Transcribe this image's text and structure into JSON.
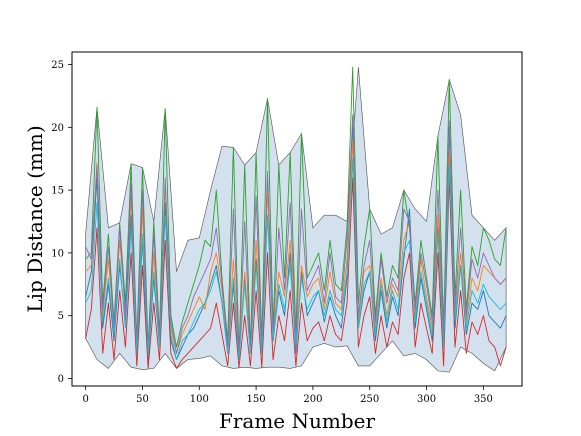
{
  "chart_data": {
    "type": "line",
    "title": "",
    "xlabel": "Frame Number",
    "ylabel": "Lip Distance (mm)",
    "xlim": [
      -12,
      384
    ],
    "ylim": [
      -0.6,
      26.0
    ],
    "x_ticks": [
      0,
      50,
      100,
      150,
      200,
      250,
      300,
      350
    ],
    "y_ticks": [
      0,
      5,
      10,
      15,
      20,
      25
    ],
    "grid": false,
    "legend": "none",
    "band": {
      "name": "",
      "color": "#9bbcd6",
      "x": [
        0,
        10,
        20,
        30,
        40,
        50,
        60,
        70,
        80,
        90,
        100,
        110,
        120,
        130,
        140,
        150,
        160,
        170,
        180,
        190,
        200,
        210,
        220,
        230,
        240,
        250,
        260,
        270,
        280,
        290,
        300,
        310,
        320,
        330,
        340,
        350,
        360,
        370
      ],
      "upper": [
        11.5,
        21.6,
        12.0,
        12.4,
        17.1,
        16.8,
        12.5,
        21.5,
        8.5,
        11.0,
        11.2,
        15.0,
        18.5,
        18.4,
        17.0,
        18.0,
        22.3,
        17.0,
        18.0,
        19.5,
        12.0,
        13.0,
        13.0,
        12.5,
        24.8,
        13.5,
        11.5,
        12.0,
        15.0,
        13.5,
        12.5,
        19.3,
        23.8,
        21.0,
        13.0,
        12.0,
        11.0,
        12.0
      ],
      "lower": [
        3.2,
        1.5,
        0.8,
        2.0,
        0.9,
        0.7,
        0.8,
        2.0,
        0.8,
        1.5,
        1.6,
        1.8,
        1.0,
        0.8,
        0.9,
        0.8,
        0.9,
        0.9,
        0.8,
        1.0,
        2.5,
        2.8,
        2.5,
        2.6,
        1.0,
        1.0,
        2.0,
        3.0,
        1.8,
        2.0,
        1.5,
        0.6,
        0.5,
        2.5,
        2.0,
        1.2,
        0.6,
        2.5
      ]
    },
    "series_x": [
      0,
      5,
      10,
      15,
      20,
      25,
      30,
      35,
      40,
      45,
      50,
      55,
      60,
      65,
      70,
      75,
      80,
      85,
      90,
      95,
      100,
      105,
      110,
      115,
      120,
      125,
      130,
      135,
      140,
      145,
      150,
      155,
      160,
      165,
      170,
      175,
      180,
      185,
      190,
      195,
      200,
      205,
      210,
      215,
      220,
      225,
      230,
      235,
      240,
      245,
      250,
      255,
      260,
      265,
      270,
      275,
      280,
      285,
      290,
      295,
      300,
      305,
      310,
      315,
      320,
      325,
      330,
      335,
      340,
      345,
      350,
      355,
      360,
      365,
      370
    ],
    "series": [
      {
        "name": "",
        "color": "#1f77b4",
        "values": [
          6.5,
          8.5,
          16.0,
          4.0,
          7.5,
          3.0,
          9.0,
          4.5,
          13.0,
          2.0,
          11.0,
          1.5,
          8.0,
          2.5,
          14.0,
          3.0,
          1.5,
          2.5,
          3.5,
          4.0,
          5.0,
          6.0,
          7.5,
          9.0,
          6.0,
          2.0,
          7.5,
          1.5,
          8.0,
          2.0,
          9.5,
          2.0,
          16.0,
          3.0,
          7.0,
          5.0,
          10.0,
          2.0,
          8.5,
          5.0,
          6.0,
          7.0,
          4.5,
          6.5,
          5.0,
          4.0,
          8.0,
          20.5,
          4.0,
          7.0,
          8.5,
          3.0,
          7.0,
          4.0,
          6.5,
          5.0,
          9.5,
          13.5,
          4.0,
          8.0,
          5.5,
          3.0,
          12.0,
          2.5,
          20.0,
          4.0,
          9.0,
          3.5,
          6.0,
          5.5,
          7.0,
          5.0,
          4.5,
          4.0,
          5.0
        ]
      },
      {
        "name": "",
        "color": "#ff7f0e",
        "values": [
          8.5,
          9.0,
          17.2,
          5.0,
          9.5,
          4.0,
          11.0,
          5.5,
          14.5,
          2.5,
          13.5,
          2.0,
          10.0,
          3.0,
          15.5,
          4.0,
          2.0,
          3.5,
          4.5,
          5.5,
          6.5,
          5.5,
          8.5,
          10.0,
          7.0,
          2.5,
          9.5,
          1.8,
          8.5,
          2.5,
          11.0,
          2.5,
          15.0,
          3.5,
          8.5,
          6.5,
          11.0,
          3.0,
          9.0,
          6.5,
          7.5,
          8.0,
          5.5,
          8.5,
          6.0,
          5.5,
          9.5,
          19.0,
          4.5,
          8.5,
          9.0,
          4.0,
          8.0,
          5.0,
          7.5,
          6.5,
          11.0,
          12.5,
          5.0,
          9.5,
          6.5,
          4.0,
          13.0,
          3.0,
          18.0,
          5.0,
          10.0,
          4.5,
          8.0,
          7.0,
          9.0,
          8.5,
          8.0,
          7.5,
          8.0
        ]
      },
      {
        "name": "",
        "color": "#2ca02c",
        "values": [
          9.5,
          10.0,
          21.6,
          6.0,
          11.5,
          4.5,
          12.4,
          6.0,
          17.1,
          3.0,
          16.8,
          2.5,
          12.5,
          3.5,
          21.5,
          5.0,
          2.5,
          4.5,
          6.0,
          7.5,
          9.0,
          11.0,
          10.5,
          15.0,
          8.0,
          3.0,
          18.4,
          2.0,
          17.0,
          2.5,
          18.0,
          3.0,
          22.3,
          4.0,
          17.0,
          8.0,
          18.0,
          3.5,
          19.5,
          8.0,
          9.0,
          10.0,
          7.0,
          11.0,
          7.5,
          7.0,
          12.0,
          24.8,
          6.0,
          10.5,
          13.5,
          5.0,
          10.0,
          6.5,
          9.0,
          8.0,
          15.0,
          12.0,
          6.0,
          11.0,
          8.0,
          5.0,
          19.3,
          4.0,
          23.8,
          6.5,
          15.0,
          5.5,
          10.5,
          9.0,
          12.0,
          11.0,
          9.5,
          9.0,
          12.0
        ]
      },
      {
        "name": "",
        "color": "#d62728",
        "values": [
          3.2,
          5.5,
          12.0,
          2.0,
          6.0,
          1.5,
          7.0,
          2.5,
          10.0,
          1.0,
          9.0,
          0.8,
          6.0,
          1.5,
          11.0,
          2.0,
          0.8,
          1.5,
          2.0,
          2.5,
          3.0,
          3.5,
          4.0,
          6.0,
          3.5,
          1.0,
          6.0,
          0.9,
          5.0,
          1.0,
          7.0,
          0.9,
          10.0,
          1.5,
          5.0,
          3.0,
          7.0,
          1.0,
          6.0,
          3.0,
          4.0,
          4.5,
          3.0,
          5.0,
          3.5,
          3.0,
          6.0,
          16.0,
          2.5,
          5.0,
          6.5,
          2.0,
          5.0,
          2.5,
          4.5,
          3.5,
          8.0,
          10.0,
          2.5,
          6.0,
          4.0,
          2.0,
          10.0,
          1.0,
          16.0,
          2.5,
          7.0,
          2.0,
          4.5,
          3.5,
          5.0,
          3.0,
          2.5,
          1.0,
          2.5
        ]
      },
      {
        "name": "",
        "color": "#9467bd",
        "values": [
          10.5,
          9.5,
          17.0,
          5.5,
          10.5,
          4.0,
          12.0,
          5.0,
          15.5,
          2.5,
          15.0,
          2.0,
          11.5,
          3.0,
          16.0,
          4.5,
          2.0,
          4.0,
          5.0,
          6.5,
          7.5,
          8.5,
          9.5,
          12.0,
          7.5,
          2.5,
          13.5,
          1.8,
          12.5,
          2.0,
          14.5,
          2.5,
          16.5,
          3.5,
          12.0,
          7.0,
          14.0,
          3.0,
          13.5,
          7.0,
          8.0,
          9.0,
          6.0,
          10.0,
          6.5,
          6.0,
          11.0,
          21.0,
          5.0,
          9.0,
          11.0,
          4.5,
          9.5,
          6.0,
          8.0,
          7.0,
          13.5,
          12.5,
          5.5,
          10.0,
          7.5,
          4.5,
          15.0,
          3.5,
          20.5,
          5.5,
          12.0,
          5.0,
          9.5,
          8.0,
          10.0,
          9.0,
          8.0,
          7.5,
          8.0
        ]
      },
      {
        "name": "",
        "color": "#17becf",
        "values": [
          6.0,
          7.0,
          14.0,
          4.5,
          8.0,
          3.5,
          9.5,
          4.0,
          12.0,
          2.0,
          11.5,
          1.8,
          8.5,
          2.5,
          13.0,
          3.5,
          1.5,
          3.0,
          3.5,
          4.5,
          5.5,
          6.0,
          7.0,
          8.5,
          6.0,
          2.0,
          8.0,
          1.5,
          7.5,
          2.0,
          9.0,
          2.0,
          13.0,
          3.0,
          7.5,
          5.5,
          9.0,
          2.5,
          8.0,
          5.5,
          6.5,
          7.0,
          5.0,
          7.0,
          5.5,
          5.0,
          8.5,
          17.5,
          4.0,
          7.5,
          8.5,
          3.5,
          7.5,
          4.5,
          7.0,
          5.5,
          10.0,
          11.0,
          4.5,
          8.5,
          6.0,
          3.5,
          11.5,
          2.5,
          17.0,
          4.5,
          9.0,
          4.0,
          7.0,
          6.0,
          7.5,
          6.5,
          6.0,
          5.5,
          6.0
        ]
      }
    ]
  }
}
